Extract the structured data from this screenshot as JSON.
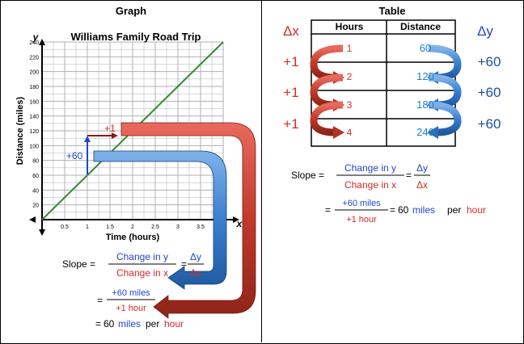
{
  "graph_panel": {
    "heading": "Graph",
    "chart_data": {
      "type": "line",
      "title": "Williams Family Road Trip",
      "xlabel": "Time (hours)",
      "ylabel": "Distance (miles)",
      "x_axis_letter": "x",
      "y_axis_letter": "y",
      "xlim": [
        0,
        4
      ],
      "ylim": [
        0,
        240
      ],
      "x_ticks": [
        "0.5",
        "1",
        "1.5",
        "2",
        "2.5",
        "3",
        "3.5"
      ],
      "y_ticks": [
        "20",
        "40",
        "60",
        "80",
        "100",
        "120",
        "140",
        "160",
        "180",
        "200",
        "220",
        "240"
      ],
      "grid": true,
      "series": [
        {
          "x": [
            0,
            4
          ],
          "y": [
            0,
            240
          ],
          "color": "#2e8b2e"
        }
      ],
      "annotations": {
        "run": "+1",
        "rise": "+60"
      }
    },
    "slope": {
      "label": "Slope =",
      "numerator": "Change in y",
      "denominator": "Change in x",
      "delta_num": "Δy",
      "delta_den": "Δx",
      "eq": "=",
      "frac_num": "+60 miles",
      "frac_den": "+1 hour",
      "result_value": "60",
      "result_unit1": "miles",
      "result_per": "per",
      "result_unit2": "hour"
    }
  },
  "table_panel": {
    "heading": "Table",
    "delta_x": "Δx",
    "delta_y": "Δy",
    "columns": [
      "Hours",
      "Distance"
    ],
    "rows": [
      {
        "hours": "1",
        "distance": "60"
      },
      {
        "hours": "2",
        "distance": "120"
      },
      {
        "hours": "3",
        "distance": "180"
      },
      {
        "hours": "4",
        "distance": "240"
      }
    ],
    "x_changes": [
      "+1",
      "+1",
      "+1"
    ],
    "y_changes": [
      "+60",
      "+60",
      "+60"
    ],
    "slope": {
      "label": "Slope =",
      "numerator": "Change in y",
      "denominator": "Change in x",
      "delta_num": "Δy",
      "delta_den": "Δx",
      "eq": "=",
      "frac_num": "+60 miles",
      "frac_den": "+1 hour",
      "result_value": "60",
      "result_unit1": "miles",
      "result_per": "per",
      "result_unit2": "hour"
    }
  },
  "colors": {
    "red": "#d42a2a",
    "blue": "#2244cc",
    "arrow_red": "#c0392b",
    "arrow_blue": "#3a7fd0",
    "line_green": "#2e8b2e",
    "table_value": "#1a7fc1",
    "grid": "#b0b0b0"
  }
}
